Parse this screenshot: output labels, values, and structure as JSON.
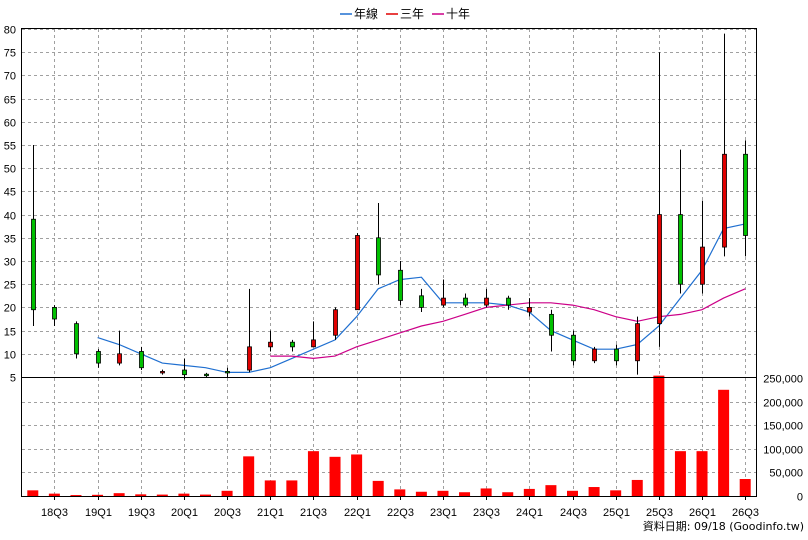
{
  "chart_data": {
    "type": "candlestick-volume",
    "legend": [
      {
        "name": "年線",
        "color": "#1f6fd0"
      },
      {
        "name": "三年",
        "color": "#e00000"
      },
      {
        "name": "十年",
        "color": "#cc0088"
      }
    ],
    "price_axis": {
      "ticks": [
        "5",
        "10",
        "15",
        "20",
        "25",
        "30",
        "35",
        "40",
        "45",
        "50",
        "55",
        "60",
        "65",
        "70",
        "75",
        "80"
      ],
      "ylim": [
        5,
        80
      ]
    },
    "volume_axis": {
      "ticks": [
        "0",
        "50,000",
        "100,000",
        "150,000",
        "200,000",
        "250,000"
      ],
      "ylim": [
        0,
        250000
      ]
    },
    "x_labels": [
      "18Q3",
      "19Q1",
      "19Q3",
      "20Q1",
      "20Q3",
      "21Q1",
      "21Q3",
      "22Q1",
      "22Q3",
      "23Q1",
      "23Q3",
      "24Q1",
      "24Q3",
      "25Q1",
      "25Q3",
      "26Q1",
      "26Q3"
    ],
    "candles": [
      {
        "o": 19.5,
        "h": 55,
        "l": 16,
        "c": 39
      },
      {
        "o": 17.5,
        "h": 20.5,
        "l": 16,
        "c": 20
      },
      {
        "o": 10,
        "h": 17,
        "l": 9,
        "c": 16.5
      },
      {
        "o": 8,
        "h": 11,
        "l": 7,
        "c": 10.5
      },
      {
        "o": 10,
        "h": 15,
        "l": 7.5,
        "c": 8
      },
      {
        "o": 7,
        "h": 11.5,
        "l": 6.5,
        "c": 10.5
      },
      {
        "o": 6.2,
        "h": 6.6,
        "l": 5.5,
        "c": 6.1
      },
      {
        "o": 5.5,
        "h": 9,
        "l": 4.5,
        "c": 6.5
      },
      {
        "o": 5.5,
        "h": 5.9,
        "l": 5,
        "c": 5.6
      },
      {
        "o": 6,
        "h": 7,
        "l": 5,
        "c": 6.2
      },
      {
        "o": 11.5,
        "h": 24,
        "l": 6,
        "c": 6.5
      },
      {
        "o": 12.5,
        "h": 15,
        "l": 10.5,
        "c": 11.5
      },
      {
        "o": 11.5,
        "h": 13,
        "l": 10.5,
        "c": 12.5
      },
      {
        "o": 13,
        "h": 17,
        "l": 11.5,
        "c": 11.5
      },
      {
        "o": 19.5,
        "h": 20,
        "l": 13,
        "c": 14
      },
      {
        "o": 35.5,
        "h": 36,
        "l": 19.5,
        "c": 19.5
      },
      {
        "o": 27,
        "h": 42.5,
        "l": 25,
        "c": 35
      },
      {
        "o": 21.5,
        "h": 30,
        "l": 20.5,
        "c": 28
      },
      {
        "o": 20,
        "h": 24,
        "l": 19,
        "c": 22.5
      },
      {
        "o": 22,
        "h": 26,
        "l": 20,
        "c": 20.5
      },
      {
        "o": 20.5,
        "h": 23,
        "l": 20,
        "c": 22
      },
      {
        "o": 22,
        "h": 24,
        "l": 20,
        "c": 20.5
      },
      {
        "o": 20.5,
        "h": 22.5,
        "l": 19.5,
        "c": 22
      },
      {
        "o": 20,
        "h": 22,
        "l": 18,
        "c": 19
      },
      {
        "o": 14,
        "h": 19.5,
        "l": 10.5,
        "c": 18.5
      },
      {
        "o": 8.5,
        "h": 15,
        "l": 7.5,
        "c": 14
      },
      {
        "o": 11,
        "h": 11.5,
        "l": 8,
        "c": 8.5
      },
      {
        "o": 8.5,
        "h": 12,
        "l": 7.5,
        "c": 11
      },
      {
        "o": 16.5,
        "h": 18,
        "l": 5.5,
        "c": 8.5
      },
      {
        "o": 40,
        "h": 75,
        "l": 11.5,
        "c": 16.5
      },
      {
        "o": 25,
        "h": 54,
        "l": 23,
        "c": 40
      },
      {
        "o": 33,
        "h": 43,
        "l": 23,
        "c": 25
      },
      {
        "o": 53,
        "h": 79,
        "l": 31,
        "c": 33
      },
      {
        "o": 35.5,
        "h": 56,
        "l": 31,
        "c": 53
      }
    ],
    "volume": [
      12000,
      5000,
      2000,
      2500,
      6000,
      3500,
      3000,
      5000,
      3000,
      11000,
      84000,
      33000,
      33000,
      95000,
      83000,
      88000,
      32000,
      14000,
      9000,
      11000,
      8000,
      16000,
      8000,
      15000,
      23000,
      11000,
      19000,
      12000,
      34000,
      255000,
      95000,
      95000,
      225000,
      36000
    ],
    "annual_line": [
      null,
      null,
      null,
      13.5,
      12,
      10,
      8,
      7.5,
      7,
      6,
      6,
      7,
      9,
      11,
      13,
      18,
      24,
      26,
      26.5,
      21,
      21,
      21,
      20.5,
      19,
      15,
      13,
      11,
      11,
      12,
      16,
      22,
      28,
      37,
      38
    ],
    "ten_year_line": [
      null,
      null,
      null,
      null,
      null,
      null,
      null,
      null,
      null,
      null,
      null,
      9.5,
      9.5,
      9,
      9.5,
      11.5,
      13,
      14.5,
      16,
      17,
      18.5,
      20,
      20.5,
      21,
      21,
      20.5,
      19.5,
      18,
      17,
      18,
      18.5,
      19.5,
      22,
      24
    ],
    "source_label": "資料日期: 09/18  (Goodinfo.tw)"
  }
}
